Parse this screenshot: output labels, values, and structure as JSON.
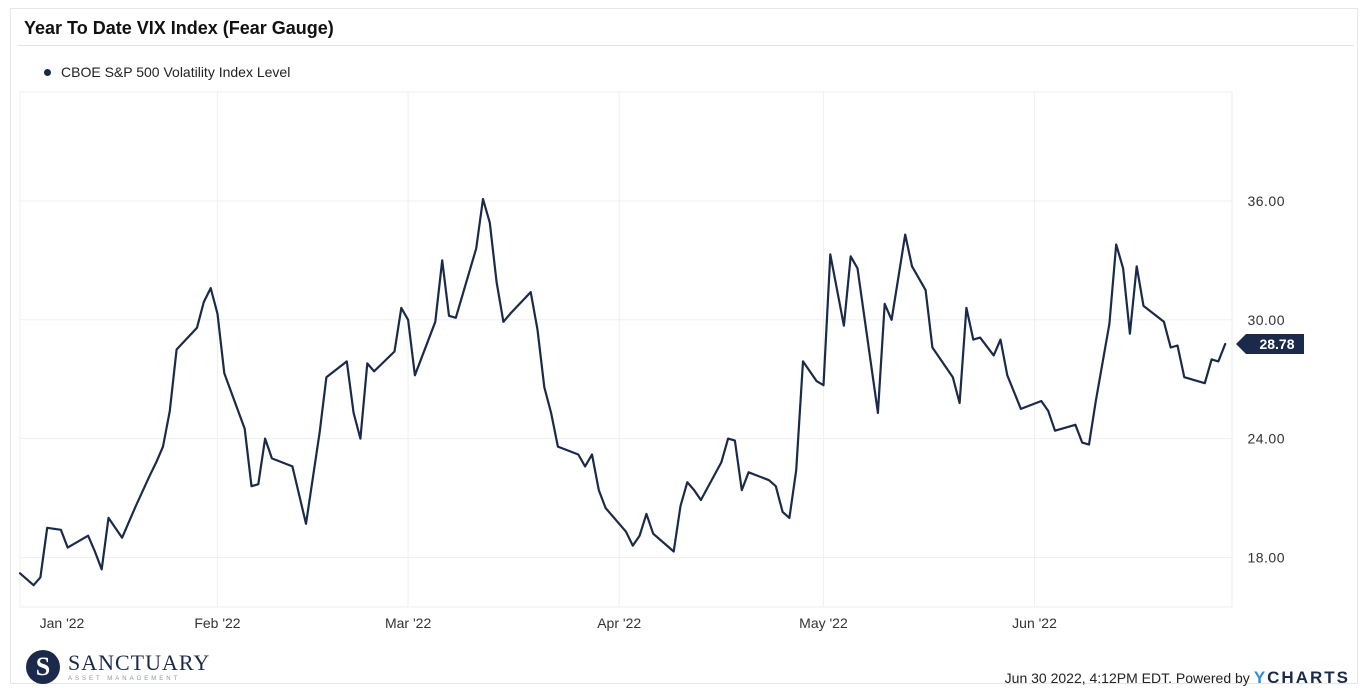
{
  "header": {
    "title": "Year To Date VIX Index (Fear Gauge)"
  },
  "legend": {
    "label": "CBOE S&P 500 Volatility Index Level"
  },
  "chart_data": {
    "type": "line",
    "title": "Year To Date VIX Index (Fear Gauge)",
    "series": [
      {
        "name": "CBOE S&P 500 Volatility Index Level",
        "color": "#1b2a4a",
        "values": [
          [
            "2022-01-03",
            17.2
          ],
          [
            "2022-01-05",
            16.6
          ],
          [
            "2022-01-06",
            17.0
          ],
          [
            "2022-01-07",
            19.5
          ],
          [
            "2022-01-09",
            19.4
          ],
          [
            "2022-01-10",
            18.5
          ],
          [
            "2022-01-13",
            19.1
          ],
          [
            "2022-01-14",
            18.3
          ],
          [
            "2022-01-15",
            17.4
          ],
          [
            "2022-01-16",
            20.0
          ],
          [
            "2022-01-18",
            19.0
          ],
          [
            "2022-01-20",
            20.6
          ],
          [
            "2022-01-22",
            22.1
          ],
          [
            "2022-01-23",
            22.8
          ],
          [
            "2022-01-24",
            23.6
          ],
          [
            "2022-01-25",
            25.4
          ],
          [
            "2022-01-26",
            28.5
          ],
          [
            "2022-01-29",
            29.6
          ],
          [
            "2022-01-30",
            30.9
          ],
          [
            "2022-01-31",
            31.6
          ],
          [
            "2022-02-01",
            30.3
          ],
          [
            "2022-02-02",
            27.3
          ],
          [
            "2022-02-05",
            24.5
          ],
          [
            "2022-02-06",
            21.6
          ],
          [
            "2022-02-07",
            21.7
          ],
          [
            "2022-02-08",
            24.0
          ],
          [
            "2022-02-09",
            23.0
          ],
          [
            "2022-02-12",
            22.6
          ],
          [
            "2022-02-14",
            19.7
          ],
          [
            "2022-02-16",
            24.3
          ],
          [
            "2022-02-17",
            27.1
          ],
          [
            "2022-02-20",
            27.9
          ],
          [
            "2022-02-21",
            25.3
          ],
          [
            "2022-02-22",
            24.0
          ],
          [
            "2022-02-23",
            27.8
          ],
          [
            "2022-02-24",
            27.4
          ],
          [
            "2022-02-27",
            28.4
          ],
          [
            "2022-02-28",
            30.6
          ],
          [
            "2022-03-01",
            30.0
          ],
          [
            "2022-03-02",
            27.2
          ],
          [
            "2022-03-05",
            29.9
          ],
          [
            "2022-03-06",
            33.0
          ],
          [
            "2022-03-07",
            30.2
          ],
          [
            "2022-03-08",
            30.1
          ],
          [
            "2022-03-11",
            33.6
          ],
          [
            "2022-03-12",
            36.1
          ],
          [
            "2022-03-13",
            34.9
          ],
          [
            "2022-03-14",
            31.9
          ],
          [
            "2022-03-15",
            29.9
          ],
          [
            "2022-03-16",
            30.3
          ],
          [
            "2022-03-19",
            31.4
          ],
          [
            "2022-03-20",
            29.5
          ],
          [
            "2022-03-21",
            26.6
          ],
          [
            "2022-03-22",
            25.3
          ],
          [
            "2022-03-23",
            23.6
          ],
          [
            "2022-03-26",
            23.2
          ],
          [
            "2022-03-27",
            22.6
          ],
          [
            "2022-03-28",
            23.2
          ],
          [
            "2022-03-29",
            21.4
          ],
          [
            "2022-03-30",
            20.5
          ],
          [
            "2022-04-02",
            19.3
          ],
          [
            "2022-04-03",
            18.6
          ],
          [
            "2022-04-04",
            19.1
          ],
          [
            "2022-04-05",
            20.2
          ],
          [
            "2022-04-06",
            19.2
          ],
          [
            "2022-04-09",
            18.3
          ],
          [
            "2022-04-10",
            20.6
          ],
          [
            "2022-04-11",
            21.8
          ],
          [
            "2022-04-12",
            21.4
          ],
          [
            "2022-04-13",
            20.9
          ],
          [
            "2022-04-16",
            22.8
          ],
          [
            "2022-04-17",
            24.0
          ],
          [
            "2022-04-18",
            23.9
          ],
          [
            "2022-04-19",
            21.4
          ],
          [
            "2022-04-20",
            22.3
          ],
          [
            "2022-04-23",
            21.9
          ],
          [
            "2022-04-24",
            21.6
          ],
          [
            "2022-04-25",
            20.3
          ],
          [
            "2022-04-26",
            20.0
          ],
          [
            "2022-04-27",
            22.4
          ],
          [
            "2022-04-28",
            27.9
          ],
          [
            "2022-04-30",
            26.9
          ],
          [
            "2022-05-01",
            26.7
          ],
          [
            "2022-05-02",
            33.3
          ],
          [
            "2022-05-04",
            29.7
          ],
          [
            "2022-05-05",
            33.2
          ],
          [
            "2022-05-06",
            32.6
          ],
          [
            "2022-05-09",
            25.3
          ],
          [
            "2022-05-10",
            30.8
          ],
          [
            "2022-05-11",
            30.0
          ],
          [
            "2022-05-13",
            34.3
          ],
          [
            "2022-05-14",
            32.7
          ],
          [
            "2022-05-16",
            31.5
          ],
          [
            "2022-05-17",
            28.6
          ],
          [
            "2022-05-20",
            27.1
          ],
          [
            "2022-05-21",
            25.8
          ],
          [
            "2022-05-22",
            30.6
          ],
          [
            "2022-05-23",
            29.0
          ],
          [
            "2022-05-24",
            29.1
          ],
          [
            "2022-05-26",
            28.2
          ],
          [
            "2022-05-27",
            29.0
          ],
          [
            "2022-05-28",
            27.2
          ],
          [
            "2022-05-30",
            25.5
          ],
          [
            "2022-06-02",
            25.9
          ],
          [
            "2022-06-03",
            25.4
          ],
          [
            "2022-06-04",
            24.4
          ],
          [
            "2022-06-07",
            24.7
          ],
          [
            "2022-06-08",
            23.8
          ],
          [
            "2022-06-09",
            23.7
          ],
          [
            "2022-06-10",
            25.9
          ],
          [
            "2022-06-12",
            29.8
          ],
          [
            "2022-06-13",
            33.8
          ],
          [
            "2022-06-14",
            32.6
          ],
          [
            "2022-06-15",
            29.3
          ],
          [
            "2022-06-16",
            32.7
          ],
          [
            "2022-06-17",
            30.7
          ],
          [
            "2022-06-20",
            29.9
          ],
          [
            "2022-06-21",
            28.6
          ],
          [
            "2022-06-22",
            28.7
          ],
          [
            "2022-06-23",
            27.1
          ],
          [
            "2022-06-26",
            26.8
          ],
          [
            "2022-06-27",
            28.0
          ],
          [
            "2022-06-28",
            27.9
          ],
          [
            "2022-06-29",
            28.78
          ]
        ]
      }
    ],
    "x_ticks": [
      {
        "date": "2022-01-03",
        "label": "Jan '22"
      },
      {
        "date": "2022-02-01",
        "label": "Feb '22"
      },
      {
        "date": "2022-03-01",
        "label": "Mar '22"
      },
      {
        "date": "2022-04-01",
        "label": "Apr '22"
      },
      {
        "date": "2022-05-01",
        "label": "May '22"
      },
      {
        "date": "2022-06-01",
        "label": "Jun '22"
      }
    ],
    "y_ticks": [
      18,
      24,
      30,
      36
    ],
    "y_tick_labels": [
      "18.00",
      "24.00",
      "30.00",
      "36.00"
    ],
    "ylim": [
      15.5,
      41.5
    ],
    "xlim": [
      "2022-01-03",
      "2022-06-30"
    ],
    "y_axis_side": "right",
    "last_value_label": "28.78",
    "grid": true,
    "legend_position": "top-left"
  },
  "brand": {
    "mark": "S",
    "name": "SANCTUARY",
    "tagline": "ASSET MANAGEMENT"
  },
  "footer": {
    "timestamp": "Jun 30 2022, 4:12PM EDT. Powered by",
    "logo_y": "Y",
    "logo_rest": "CHARTS"
  }
}
